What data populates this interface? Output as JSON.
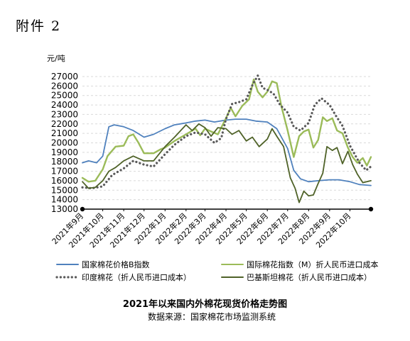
{
  "header": {
    "attachment": "附件 2"
  },
  "chart_data": {
    "type": "line",
    "title": "2021年以来国内外棉花现货价格走势图",
    "source": "数据来源：国家棉花市场监测系统",
    "ylabel": "元/吨",
    "xlabel": "",
    "ylim": [
      13000,
      27000
    ],
    "yticks": [
      13000,
      14000,
      15000,
      16000,
      17000,
      18000,
      19000,
      20000,
      21000,
      22000,
      23000,
      24000,
      25000,
      26000,
      27000
    ],
    "grid": true,
    "legend_position": "bottom",
    "x": [
      "2021-09",
      "2021-10",
      "2021-11",
      "2021-12",
      "2022-01",
      "2022-02",
      "2022-03",
      "2022-04",
      "2022-05",
      "2022-06",
      "2022-07",
      "2022-08",
      "2022-09",
      "2022-10",
      "2022-11"
    ],
    "x_tick_labels": [
      "2021年9月",
      "2021年10月",
      "2021年11月",
      "2021年12月",
      "2022年1月",
      "2022年2月",
      "2022年3月",
      "2022年4月",
      "2022年5月",
      "2022年6月",
      "2022年7月",
      "2022年8月",
      "2022年9月",
      "2022年10月"
    ],
    "series": [
      {
        "name": "国家棉花价格B指数",
        "color": "#4f81bd",
        "style": "solid",
        "points": [
          [
            "2021-09-01",
            17900
          ],
          [
            "2021-09-10",
            18100
          ],
          [
            "2021-09-22",
            17900
          ],
          [
            "2021-10-01",
            18600
          ],
          [
            "2021-10-10",
            21700
          ],
          [
            "2021-10-18",
            21900
          ],
          [
            "2021-11-01",
            21700
          ],
          [
            "2021-11-15",
            21300
          ],
          [
            "2021-12-01",
            20600
          ],
          [
            "2021-12-15",
            20900
          ],
          [
            "2022-01-01",
            21500
          ],
          [
            "2022-01-15",
            21900
          ],
          [
            "2022-02-01",
            22100
          ],
          [
            "2022-02-15",
            22300
          ],
          [
            "2022-03-01",
            22400
          ],
          [
            "2022-03-15",
            22200
          ],
          [
            "2022-04-01",
            22400
          ],
          [
            "2022-04-15",
            22500
          ],
          [
            "2022-05-01",
            22500
          ],
          [
            "2022-05-15",
            22300
          ],
          [
            "2022-06-01",
            22200
          ],
          [
            "2022-06-15",
            21500
          ],
          [
            "2022-07-01",
            19400
          ],
          [
            "2022-07-10",
            17100
          ],
          [
            "2022-07-20",
            16200
          ],
          [
            "2022-08-01",
            15900
          ],
          [
            "2022-08-15",
            16000
          ],
          [
            "2022-09-01",
            16100
          ],
          [
            "2022-09-15",
            16100
          ],
          [
            "2022-10-01",
            15900
          ],
          [
            "2022-10-15",
            15600
          ],
          [
            "2022-11-01",
            15500
          ]
        ]
      },
      {
        "name": "国际棉花指数（M）折人民币进口成本",
        "color": "#9bbb59",
        "style": "solid",
        "points": [
          [
            "2021-09-01",
            16300
          ],
          [
            "2021-09-10",
            15900
          ],
          [
            "2021-09-20",
            16000
          ],
          [
            "2021-10-01",
            17200
          ],
          [
            "2021-10-08",
            18600
          ],
          [
            "2021-10-20",
            19600
          ],
          [
            "2021-11-01",
            19700
          ],
          [
            "2021-11-08",
            20700
          ],
          [
            "2021-11-15",
            20900
          ],
          [
            "2021-11-22",
            20100
          ],
          [
            "2021-12-01",
            18900
          ],
          [
            "2021-12-15",
            18900
          ],
          [
            "2021-12-25",
            19300
          ],
          [
            "2022-01-01",
            19500
          ],
          [
            "2022-01-15",
            20200
          ],
          [
            "2022-02-01",
            20900
          ],
          [
            "2022-02-15",
            21500
          ],
          [
            "2022-02-22",
            20800
          ],
          [
            "2022-03-01",
            21500
          ],
          [
            "2022-03-10",
            21200
          ],
          [
            "2022-03-20",
            20900
          ],
          [
            "2022-04-01",
            22600
          ],
          [
            "2022-04-08",
            23700
          ],
          [
            "2022-04-15",
            22800
          ],
          [
            "2022-04-25",
            23900
          ],
          [
            "2022-05-05",
            24600
          ],
          [
            "2022-05-12",
            26700
          ],
          [
            "2022-05-18",
            25400
          ],
          [
            "2022-05-25",
            24800
          ],
          [
            "2022-06-01",
            25400
          ],
          [
            "2022-06-08",
            26500
          ],
          [
            "2022-06-15",
            26300
          ],
          [
            "2022-06-22",
            23800
          ],
          [
            "2022-07-01",
            21300
          ],
          [
            "2022-07-10",
            18500
          ],
          [
            "2022-07-18",
            20700
          ],
          [
            "2022-07-25",
            21200
          ],
          [
            "2022-08-01",
            21400
          ],
          [
            "2022-08-08",
            19500
          ],
          [
            "2022-08-15",
            20300
          ],
          [
            "2022-08-22",
            22700
          ],
          [
            "2022-08-28",
            22300
          ],
          [
            "2022-09-05",
            22600
          ],
          [
            "2022-09-12",
            21300
          ],
          [
            "2022-09-20",
            21000
          ],
          [
            "2022-09-28",
            19500
          ],
          [
            "2022-10-05",
            18500
          ],
          [
            "2022-10-12",
            17900
          ],
          [
            "2022-10-20",
            18400
          ],
          [
            "2022-10-26",
            17600
          ],
          [
            "2022-11-01",
            18500
          ]
        ]
      },
      {
        "name": "印度棉花（折人民币进口成本）",
        "color": "#595959",
        "style": "dotted",
        "points": [
          [
            "2021-09-01",
            15300
          ],
          [
            "2021-09-15",
            15200
          ],
          [
            "2021-10-01",
            15400
          ],
          [
            "2021-10-15",
            16600
          ],
          [
            "2021-11-01",
            17300
          ],
          [
            "2021-11-15",
            18100
          ],
          [
            "2021-12-01",
            17700
          ],
          [
            "2021-12-15",
            17500
          ],
          [
            "2022-01-01",
            18800
          ],
          [
            "2022-01-15",
            19800
          ],
          [
            "2022-02-01",
            20700
          ],
          [
            "2022-02-15",
            21100
          ],
          [
            "2022-03-01",
            20900
          ],
          [
            "2022-03-15",
            20000
          ],
          [
            "2022-03-25",
            20500
          ],
          [
            "2022-04-01",
            22500
          ],
          [
            "2022-04-10",
            24100
          ],
          [
            "2022-04-20",
            24300
          ],
          [
            "2022-05-01",
            24600
          ],
          [
            "2022-05-10",
            26100
          ],
          [
            "2022-05-18",
            27100
          ],
          [
            "2022-05-25",
            25800
          ],
          [
            "2022-06-01",
            25600
          ],
          [
            "2022-06-10",
            25200
          ],
          [
            "2022-06-20",
            24000
          ],
          [
            "2022-07-01",
            23200
          ],
          [
            "2022-07-10",
            21700
          ],
          [
            "2022-07-20",
            21300
          ],
          [
            "2022-08-01",
            22100
          ],
          [
            "2022-08-10",
            24000
          ],
          [
            "2022-08-20",
            24700
          ],
          [
            "2022-09-01",
            24000
          ],
          [
            "2022-09-10",
            22900
          ],
          [
            "2022-09-20",
            21800
          ],
          [
            "2022-10-01",
            19700
          ],
          [
            "2022-10-15",
            17900
          ],
          [
            "2022-10-25",
            17100
          ],
          [
            "2022-11-01",
            17500
          ]
        ]
      },
      {
        "name": "巴基斯坦棉花（折人民币进口成本）",
        "color": "#4f6228",
        "style": "solid",
        "points": [
          [
            "2021-09-01",
            15900
          ],
          [
            "2021-09-10",
            15200
          ],
          [
            "2021-09-20",
            15300
          ],
          [
            "2021-10-01",
            16000
          ],
          [
            "2021-10-10",
            17000
          ],
          [
            "2021-10-20",
            17400
          ],
          [
            "2021-11-01",
            18100
          ],
          [
            "2021-11-15",
            18600
          ],
          [
            "2021-12-01",
            18100
          ],
          [
            "2021-12-15",
            18100
          ],
          [
            "2022-01-01",
            19600
          ],
          [
            "2022-01-15",
            20600
          ],
          [
            "2022-02-01",
            21900
          ],
          [
            "2022-02-10",
            21300
          ],
          [
            "2022-02-20",
            22000
          ],
          [
            "2022-03-01",
            21600
          ],
          [
            "2022-03-10",
            20700
          ],
          [
            "2022-03-20",
            21600
          ],
          [
            "2022-04-01",
            21500
          ],
          [
            "2022-04-10",
            20900
          ],
          [
            "2022-04-20",
            21300
          ],
          [
            "2022-05-01",
            20200
          ],
          [
            "2022-05-10",
            20600
          ],
          [
            "2022-05-20",
            19600
          ],
          [
            "2022-06-01",
            20400
          ],
          [
            "2022-06-08",
            21500
          ],
          [
            "2022-06-15",
            20700
          ],
          [
            "2022-06-25",
            19600
          ],
          [
            "2022-07-05",
            16300
          ],
          [
            "2022-07-12",
            15200
          ],
          [
            "2022-07-18",
            13700
          ],
          [
            "2022-07-25",
            14900
          ],
          [
            "2022-08-01",
            14400
          ],
          [
            "2022-08-08",
            14500
          ],
          [
            "2022-08-15",
            15700
          ],
          [
            "2022-08-22",
            16800
          ],
          [
            "2022-08-28",
            19600
          ],
          [
            "2022-09-05",
            19200
          ],
          [
            "2022-09-12",
            19500
          ],
          [
            "2022-09-20",
            17800
          ],
          [
            "2022-09-28",
            19100
          ],
          [
            "2022-10-05",
            17700
          ],
          [
            "2022-10-12",
            16700
          ],
          [
            "2022-10-20",
            15800
          ],
          [
            "2022-11-01",
            16000
          ]
        ]
      }
    ]
  }
}
